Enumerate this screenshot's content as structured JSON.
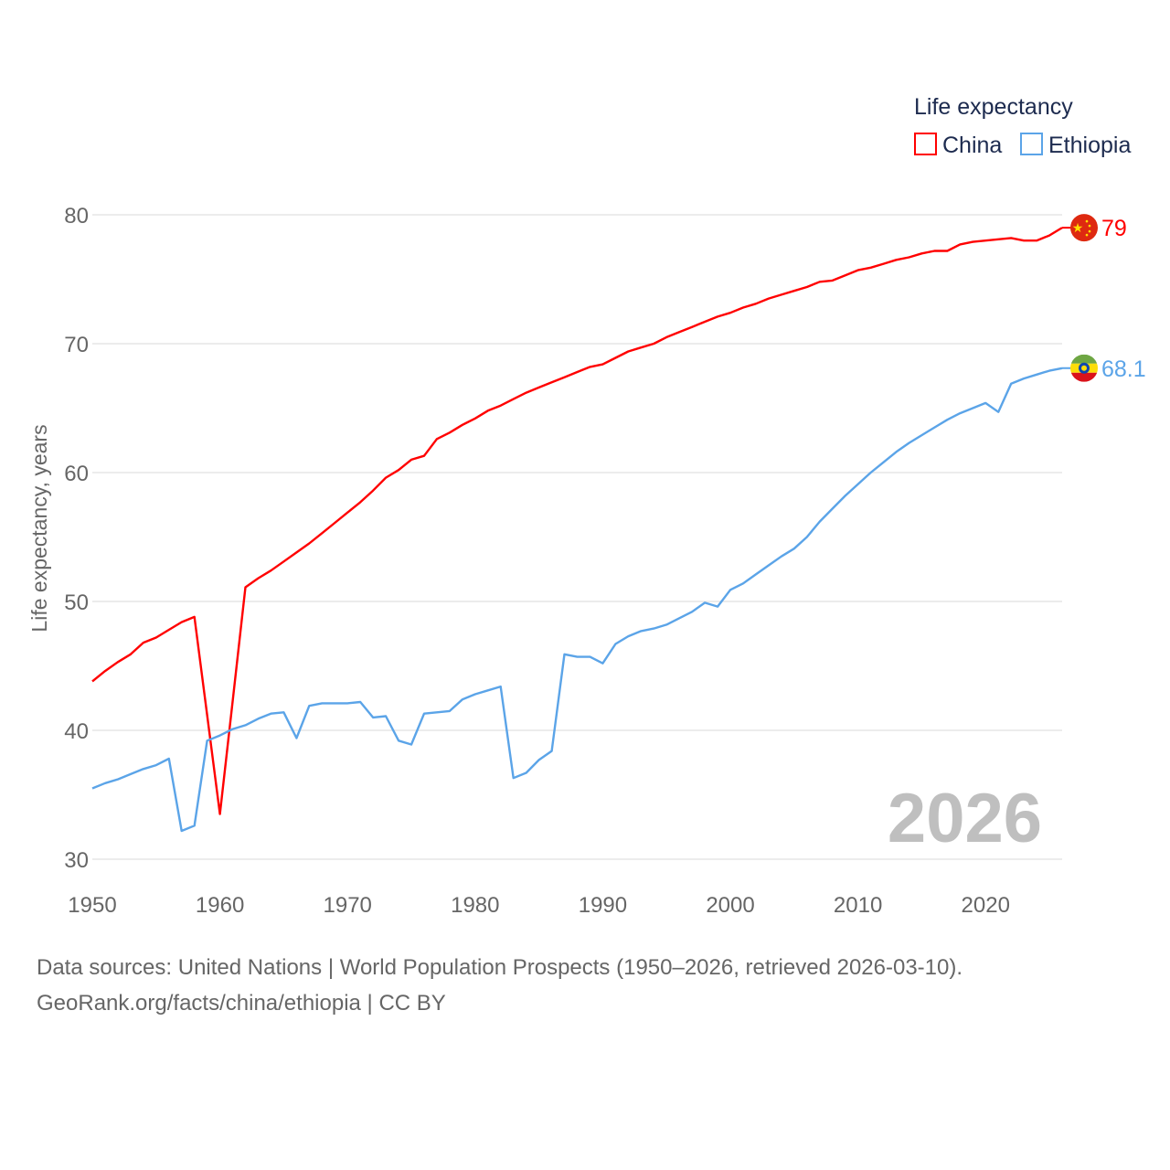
{
  "chart_data": {
    "type": "line",
    "title": "",
    "legend_title": "Life expectancy",
    "legend_placement": "top-right",
    "xlabel": "",
    "ylabel": "Life expectancy, years",
    "xlim": [
      1950,
      2026
    ],
    "ylim": [
      30,
      80
    ],
    "xticks": [
      1950,
      1960,
      1970,
      1980,
      1990,
      2000,
      2010,
      2020
    ],
    "yticks": [
      30,
      40,
      50,
      60,
      70,
      80
    ],
    "grid": true,
    "year_watermark": "2026",
    "x_start": 1950,
    "series": [
      {
        "name": "China",
        "color": "#ff0000",
        "end_label": "79",
        "flag": "china-flag",
        "values": [
          43.8,
          44.6,
          45.3,
          45.9,
          46.8,
          47.2,
          47.8,
          48.4,
          48.8,
          41.2,
          33.5,
          42.3,
          51.1,
          51.8,
          52.4,
          53.1,
          53.8,
          54.5,
          55.3,
          56.1,
          56.9,
          57.7,
          58.6,
          59.6,
          60.2,
          61.0,
          61.3,
          62.6,
          63.1,
          63.7,
          64.2,
          64.8,
          65.2,
          65.7,
          66.2,
          66.6,
          67.0,
          67.4,
          67.8,
          68.2,
          68.4,
          68.9,
          69.4,
          69.7,
          70.0,
          70.5,
          70.9,
          71.3,
          71.7,
          72.1,
          72.4,
          72.8,
          73.1,
          73.5,
          73.8,
          74.1,
          74.4,
          74.8,
          74.9,
          75.3,
          75.7,
          75.9,
          76.2,
          76.5,
          76.7,
          77.0,
          77.2,
          77.2,
          77.7,
          77.9,
          78.0,
          78.1,
          78.2,
          78.0,
          78.0,
          78.4,
          79.0
        ]
      },
      {
        "name": "Ethiopia",
        "color": "#5ba4e8",
        "end_label": "68.1",
        "flag": "ethiopia-flag",
        "values": [
          35.5,
          35.9,
          36.2,
          36.6,
          37.0,
          37.3,
          37.8,
          32.2,
          32.6,
          39.2,
          39.6,
          40.1,
          40.4,
          40.9,
          41.3,
          41.4,
          39.4,
          41.9,
          42.1,
          42.1,
          42.1,
          42.2,
          41.0,
          41.1,
          39.2,
          38.9,
          41.3,
          41.4,
          41.5,
          42.4,
          42.8,
          43.1,
          43.4,
          36.3,
          36.7,
          37.7,
          38.4,
          45.9,
          45.7,
          45.7,
          45.2,
          46.7,
          47.3,
          47.7,
          47.9,
          48.2,
          48.7,
          49.2,
          49.9,
          49.6,
          50.9,
          51.4,
          52.1,
          52.8,
          53.5,
          54.1,
          55.0,
          56.2,
          57.2,
          58.2,
          59.1,
          60.0,
          60.8,
          61.6,
          62.3,
          62.9,
          63.5,
          64.1,
          64.6,
          65.0,
          65.4,
          64.7,
          66.9,
          67.3,
          67.6,
          67.9,
          68.1
        ]
      }
    ]
  },
  "footer": {
    "source": "Data sources: United Nations | World Population Prospects (1950–2026, retrieved 2026-03-10).",
    "credit": "GeoRank.org/facts/china/ethiopia | CC BY"
  }
}
